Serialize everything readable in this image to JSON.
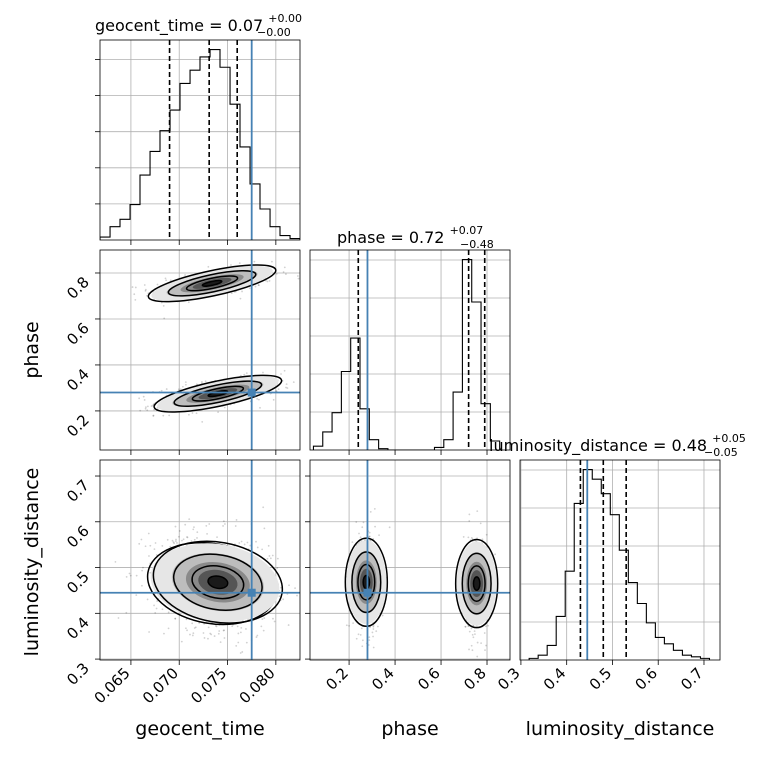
{
  "chart_data": {
    "type": "corner",
    "parameters": [
      "geocent_time",
      "phase",
      "luminosity_distance"
    ],
    "ranges": {
      "geocent_time": [
        0.0618,
        0.0825
      ],
      "phase": [
        0.03,
        0.9
      ],
      "luminosity_distance": [
        0.298,
        0.735
      ]
    },
    "truths": {
      "geocent_time": 0.0775,
      "phase": 0.28,
      "luminosity_distance": 0.445
    },
    "titles": [
      {
        "param": "geocent_time",
        "prefix": "geocent_time = 0.07",
        "sup": "+0.00",
        "sub": "−0.00"
      },
      {
        "param": "phase",
        "prefix": "phase = 0.72",
        "sup": "+0.07",
        "sub": "−0.48"
      },
      {
        "param": "luminosity_distance",
        "prefix": "luminosity_distance = 0.48",
        "sup": "+0.05",
        "sub": "−0.05"
      }
    ],
    "quantiles": {
      "geocent_time": [
        0.069,
        0.0731,
        0.076
      ],
      "phase": [
        0.24,
        0.72,
        0.79
      ],
      "luminosity_distance": [
        0.43,
        0.48,
        0.53
      ]
    },
    "ticks": {
      "geocent_time": [
        "0.065",
        "0.070",
        "0.075",
        "0.080"
      ],
      "phase": [
        "0.2",
        "0.4",
        "0.6",
        "0.8"
      ],
      "luminosity_distance": [
        "0.3",
        "0.4",
        "0.5",
        "0.6",
        "0.7"
      ]
    },
    "histograms": {
      "geocent_time": {
        "edges": [
          0.0618,
          0.06284,
          0.06387,
          0.06491,
          0.06594,
          0.06698,
          0.06801,
          0.06905,
          0.07008,
          0.07112,
          0.07215,
          0.07319,
          0.07422,
          0.07526,
          0.07629,
          0.07733,
          0.07836,
          0.0794,
          0.08043,
          0.08147,
          0.0825
        ],
        "counts": [
          2,
          9,
          14,
          24,
          44,
          60,
          74,
          88,
          106,
          115,
          124,
          129,
          117,
          92,
          63,
          38,
          21,
          9,
          3,
          1
        ]
      },
      "phase": {
        "edges": [
          0.045,
          0.0855,
          0.126,
          0.1665,
          0.207,
          0.2475,
          0.288,
          0.3285,
          0.369,
          0.4095,
          0.45,
          0.4905,
          0.531,
          0.5715,
          0.612,
          0.6525,
          0.693,
          0.7335,
          0.774,
          0.8145,
          0.855
        ],
        "counts": [
          3,
          14,
          29,
          61,
          87,
          32,
          8,
          1,
          0,
          0,
          0,
          0,
          0,
          2,
          8,
          45,
          148,
          115,
          36,
          7
        ]
      },
      "luminosity_distance": {
        "edges": [
          0.318,
          0.3377,
          0.3574,
          0.3771,
          0.3968,
          0.4165,
          0.4362,
          0.4559,
          0.4756,
          0.4953,
          0.515,
          0.5347,
          0.5544,
          0.5741,
          0.5938,
          0.6135,
          0.6332,
          0.6529,
          0.6726,
          0.6923,
          0.712
        ],
        "counts": [
          1,
          3,
          9,
          27,
          55,
          97,
          118,
          112,
          103,
          90,
          68,
          48,
          35,
          23,
          14,
          10,
          6,
          3,
          2,
          1
        ]
      }
    },
    "modes": [
      {
        "geocent_time": 0.0734,
        "phase": 0.755,
        "luminosity_distance": 0.465
      },
      {
        "geocent_time": 0.074,
        "phase": 0.275,
        "luminosity_distance": 0.468
      }
    ],
    "legend": "none",
    "grid": true,
    "colors": {
      "line": "#000000",
      "truth": "#4682b4",
      "grid": "#b0b0b0",
      "points": "#000000"
    }
  }
}
